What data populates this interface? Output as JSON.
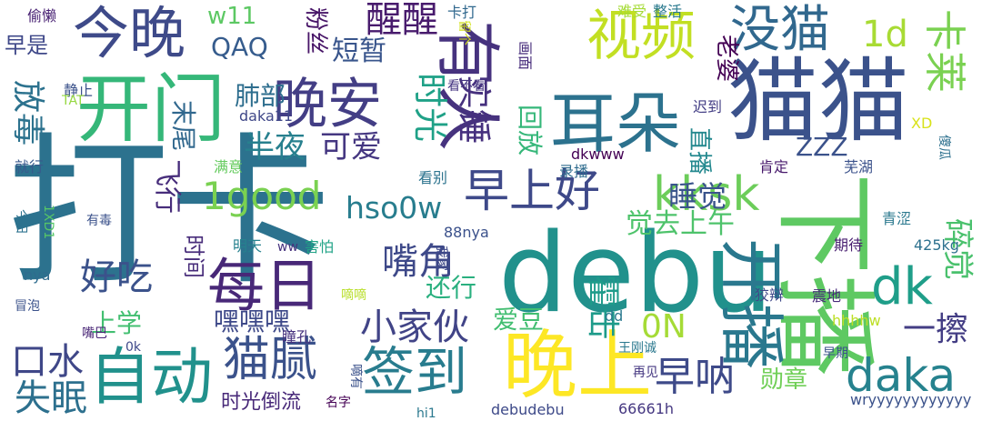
{
  "word_cloud": {
    "words": [
      {
        "text": "打卡",
        "color": "#2c728e"
      },
      {
        "text": "debu",
        "color": "#21918c"
      },
      {
        "text": "猫猫",
        "color": "#3b528b"
      },
      {
        "text": "下播",
        "color": "#5ec962"
      },
      {
        "text": "开门",
        "color": "#35b779"
      },
      {
        "text": "今晚",
        "color": "#3e4a89"
      },
      {
        "text": "晚上",
        "color": "#fde725"
      },
      {
        "text": "有人",
        "color": "#46327e"
      },
      {
        "text": "耳朵",
        "color": "#2c728e"
      },
      {
        "text": "视频",
        "color": "#c2df23"
      },
      {
        "text": "没猫",
        "color": "#31688e"
      },
      {
        "text": "每日",
        "color": "#482878"
      },
      {
        "text": "自动",
        "color": "#21918c"
      },
      {
        "text": "签到",
        "color": "#287c8e"
      },
      {
        "text": "晚安",
        "color": "#433e85"
      },
      {
        "text": "开播",
        "color": "#2a788e"
      },
      {
        "text": "早上好",
        "color": "#3e4989"
      },
      {
        "text": "daka",
        "color": "#26828e"
      },
      {
        "text": "kksk",
        "color": "#6ccd5a"
      },
      {
        "text": "猫腻",
        "color": "#3b528b"
      },
      {
        "text": "小家伙",
        "color": "#414487"
      },
      {
        "text": "早呐",
        "color": "#3e4a89"
      },
      {
        "text": "dk",
        "color": "#1f9e89"
      },
      {
        "text": "卡莱",
        "color": "#7ad151"
      },
      {
        "text": "醒醒",
        "color": "#481b6d"
      },
      {
        "text": "QAQ",
        "color": "#365c8d"
      },
      {
        "text": "放毒",
        "color": "#2c728e"
      },
      {
        "text": "口水",
        "color": "#3f4788"
      },
      {
        "text": "失眠",
        "color": "#2d708e"
      },
      {
        "text": "嘴角",
        "color": "#3e4989"
      },
      {
        "text": "1good",
        "color": "#7ad151"
      },
      {
        "text": "hso0w",
        "color": "#287d8e"
      },
      {
        "text": "半夜",
        "color": "#27808e"
      },
      {
        "text": "可爱",
        "color": "#453781"
      },
      {
        "text": "睡觉",
        "color": "#3a548c"
      },
      {
        "text": "好吃",
        "color": "#3b528b"
      },
      {
        "text": "时光",
        "color": "#1fa187"
      },
      {
        "text": "实锤",
        "color": "#46307e"
      },
      {
        "text": "短暂",
        "color": "#39558c"
      },
      {
        "text": "1d",
        "color": "#a8db34"
      },
      {
        "text": "碎觉",
        "color": "#4ac16d"
      },
      {
        "text": "0N",
        "color": "#a5db36"
      },
      {
        "text": "霍击",
        "color": "#1e9b8a"
      },
      {
        "text": "一擦",
        "color": "#433d84"
      },
      {
        "text": "勋章",
        "color": "#70cf57"
      },
      {
        "text": "觉去上午",
        "color": "#4ec36b"
      },
      {
        "text": "嘿嘿嘿",
        "color": "#3e4989"
      },
      {
        "text": "老婆",
        "color": "#440154"
      },
      {
        "text": "ZZZ",
        "color": "#3b528b"
      },
      {
        "text": "直播",
        "color": "#23888e"
      },
      {
        "text": "回放",
        "color": "#35b779"
      },
      {
        "text": "时光倒流",
        "color": "#482979"
      },
      {
        "text": "爱豆",
        "color": "#42be71"
      },
      {
        "text": "还行",
        "color": "#2ab07f"
      },
      {
        "text": "上学",
        "color": "#43bf71"
      },
      {
        "text": "飞行",
        "color": "#472d7b"
      },
      {
        "text": "肺部",
        "color": "#2e6e8e"
      },
      {
        "text": "w11",
        "color": "#5cc863"
      },
      {
        "text": "粉丝",
        "color": "#481668"
      },
      {
        "text": "早是",
        "color": "#3f4889"
      },
      {
        "text": "末尾",
        "color": "#31688e"
      },
      {
        "text": "时间",
        "color": "#472c7a"
      },
      {
        "text": "wryyyyyyyyyyyy",
        "color": "#3b528b"
      },
      {
        "text": "debudebu",
        "color": "#3e4a89"
      },
      {
        "text": "66661h",
        "color": "#453781"
      },
      {
        "text": "daka11",
        "color": "#3f4788"
      },
      {
        "text": "dkwww",
        "color": "#440154"
      },
      {
        "text": "88nya",
        "color": "#3b518b"
      },
      {
        "text": "425kg",
        "color": "#2d718e"
      },
      {
        "text": "hhhhw",
        "color": "#bddf26"
      },
      {
        "text": "卡打",
        "color": "#31688e"
      },
      {
        "text": "偷懒",
        "color": "#482173"
      },
      {
        "text": "难受",
        "color": "#a5db36"
      },
      {
        "text": "整活",
        "color": "#29798e"
      },
      {
        "text": "留个",
        "color": "#d2e21b"
      },
      {
        "text": "画面",
        "color": "#472d7b"
      },
      {
        "text": "静止",
        "color": "#3b528b"
      },
      {
        "text": "TAT",
        "color": "#95d840"
      },
      {
        "text": "看不看",
        "color": "#453581"
      },
      {
        "text": "迟到",
        "color": "#433e85"
      },
      {
        "text": "XD",
        "color": "#d8e219"
      },
      {
        "text": "傻瓜",
        "color": "#2d708e"
      },
      {
        "text": "就行",
        "color": "#38598c"
      },
      {
        "text": "满意",
        "color": "#65cb5e"
      },
      {
        "text": "录播",
        "color": "#2f6c8e"
      },
      {
        "text": "肯定",
        "color": "#481a6c"
      },
      {
        "text": "芜湖",
        "color": "#3b528b"
      },
      {
        "text": "看别",
        "color": "#2c738e"
      },
      {
        "text": "今日",
        "color": "#2c728e"
      },
      {
        "text": "1XD1",
        "color": "#56c667"
      },
      {
        "text": "有毒",
        "color": "#3b528b"
      },
      {
        "text": "明天",
        "color": "#26818e"
      },
      {
        "text": "ww",
        "color": "#46327e"
      },
      {
        "text": "害怕",
        "color": "#20a386"
      },
      {
        "text": "我家",
        "color": "#3e4989"
      },
      {
        "text": "期待",
        "color": "#481f70"
      },
      {
        "text": "青涩",
        "color": "#2a788e"
      },
      {
        "text": "nya",
        "color": "#2f6c8e"
      },
      {
        "text": "冒泡",
        "color": "#3b528b"
      },
      {
        "text": "嘀嘀",
        "color": "#b8de29"
      },
      {
        "text": "嘴巴",
        "color": "#482576"
      },
      {
        "text": "瞳孔",
        "color": "#46307e"
      },
      {
        "text": "dd",
        "color": "#29798e"
      },
      {
        "text": "狡辩",
        "color": "#3f4889"
      },
      {
        "text": "震地",
        "color": "#472a7a"
      },
      {
        "text": "0k",
        "color": "#3e4989"
      },
      {
        "text": "嘀有",
        "color": "#3b528b"
      },
      {
        "text": "王刚诚",
        "color": "#2a788e"
      },
      {
        "text": "早期",
        "color": "#3b528b"
      },
      {
        "text": "hi1",
        "color": "#2a788e"
      },
      {
        "text": "再见",
        "color": "#453781"
      },
      {
        "text": "名字",
        "color": "#440154"
      }
    ]
  }
}
